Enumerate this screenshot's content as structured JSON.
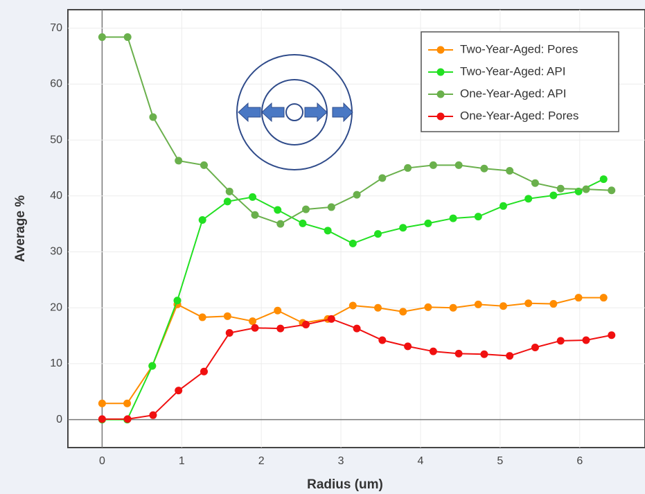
{
  "chart_data": {
    "type": "line",
    "xlabel": "Radius (um)",
    "ylabel": "Average %",
    "xlim": [
      -0.43,
      6.82
    ],
    "ylim": [
      -5,
      73.3
    ],
    "xticks": [
      0,
      1,
      2,
      3,
      4,
      5,
      6
    ],
    "yticks": [
      0,
      10,
      20,
      30,
      40,
      50,
      60,
      70
    ],
    "grid": true,
    "legend": "upper right",
    "series": [
      {
        "name": "Two-Year-Aged: Pores",
        "color": "#ff8c00",
        "x": [
          0,
          0.315,
          0.63,
          0.945,
          1.26,
          1.575,
          1.89,
          2.205,
          2.52,
          2.835,
          3.15,
          3.465,
          3.78,
          4.095,
          4.41,
          4.725,
          5.04,
          5.355,
          5.67,
          5.985,
          6.3
        ],
        "values": [
          2.9,
          2.9,
          9.6,
          20.6,
          18.3,
          18.5,
          17.6,
          19.5,
          17.3,
          18.0,
          20.4,
          20.0,
          19.3,
          20.1,
          20.0,
          20.6,
          20.3,
          20.8,
          20.7,
          21.8,
          21.8
        ]
      },
      {
        "name": "Two-Year-Aged: API",
        "color": "#22e022",
        "x": [
          0,
          0.315,
          0.63,
          0.945,
          1.26,
          1.575,
          1.89,
          2.205,
          2.52,
          2.835,
          3.15,
          3.465,
          3.78,
          4.095,
          4.41,
          4.725,
          5.04,
          5.355,
          5.67,
          5.985,
          6.3
        ],
        "values": [
          0,
          0,
          9.6,
          21.3,
          35.7,
          39.0,
          39.8,
          37.5,
          35.1,
          33.8,
          31.5,
          33.2,
          34.3,
          35.1,
          36.0,
          36.3,
          38.2,
          39.5,
          40.1,
          40.8,
          43.0
        ]
      },
      {
        "name": "One-Year-Aged: API",
        "color": "#6ab04c",
        "x": [
          0,
          0.32,
          0.64,
          0.96,
          1.28,
          1.6,
          1.92,
          2.24,
          2.56,
          2.88,
          3.2,
          3.52,
          3.84,
          4.16,
          4.48,
          4.8,
          5.12,
          5.44,
          5.76,
          6.08,
          6.4
        ],
        "values": [
          68.4,
          68.4,
          54.1,
          46.3,
          45.5,
          40.8,
          36.6,
          35.0,
          37.6,
          38.0,
          40.2,
          43.2,
          45.0,
          45.5,
          45.5,
          44.9,
          44.5,
          42.3,
          41.3,
          41.2,
          41.0
        ]
      },
      {
        "name": "One-Year-Aged: Pores",
        "color": "#f01010",
        "x": [
          0,
          0.32,
          0.64,
          0.96,
          1.28,
          1.6,
          1.92,
          2.24,
          2.56,
          2.88,
          3.2,
          3.52,
          3.84,
          4.16,
          4.48,
          4.8,
          5.12,
          5.44,
          5.76,
          6.08,
          6.4
        ],
        "values": [
          0.1,
          0.1,
          0.8,
          5.2,
          8.6,
          15.5,
          16.4,
          16.3,
          17.0,
          18.0,
          16.3,
          14.2,
          13.1,
          12.2,
          11.8,
          11.7,
          11.4,
          12.9,
          14.1,
          14.2,
          15.1
        ]
      }
    ]
  }
}
